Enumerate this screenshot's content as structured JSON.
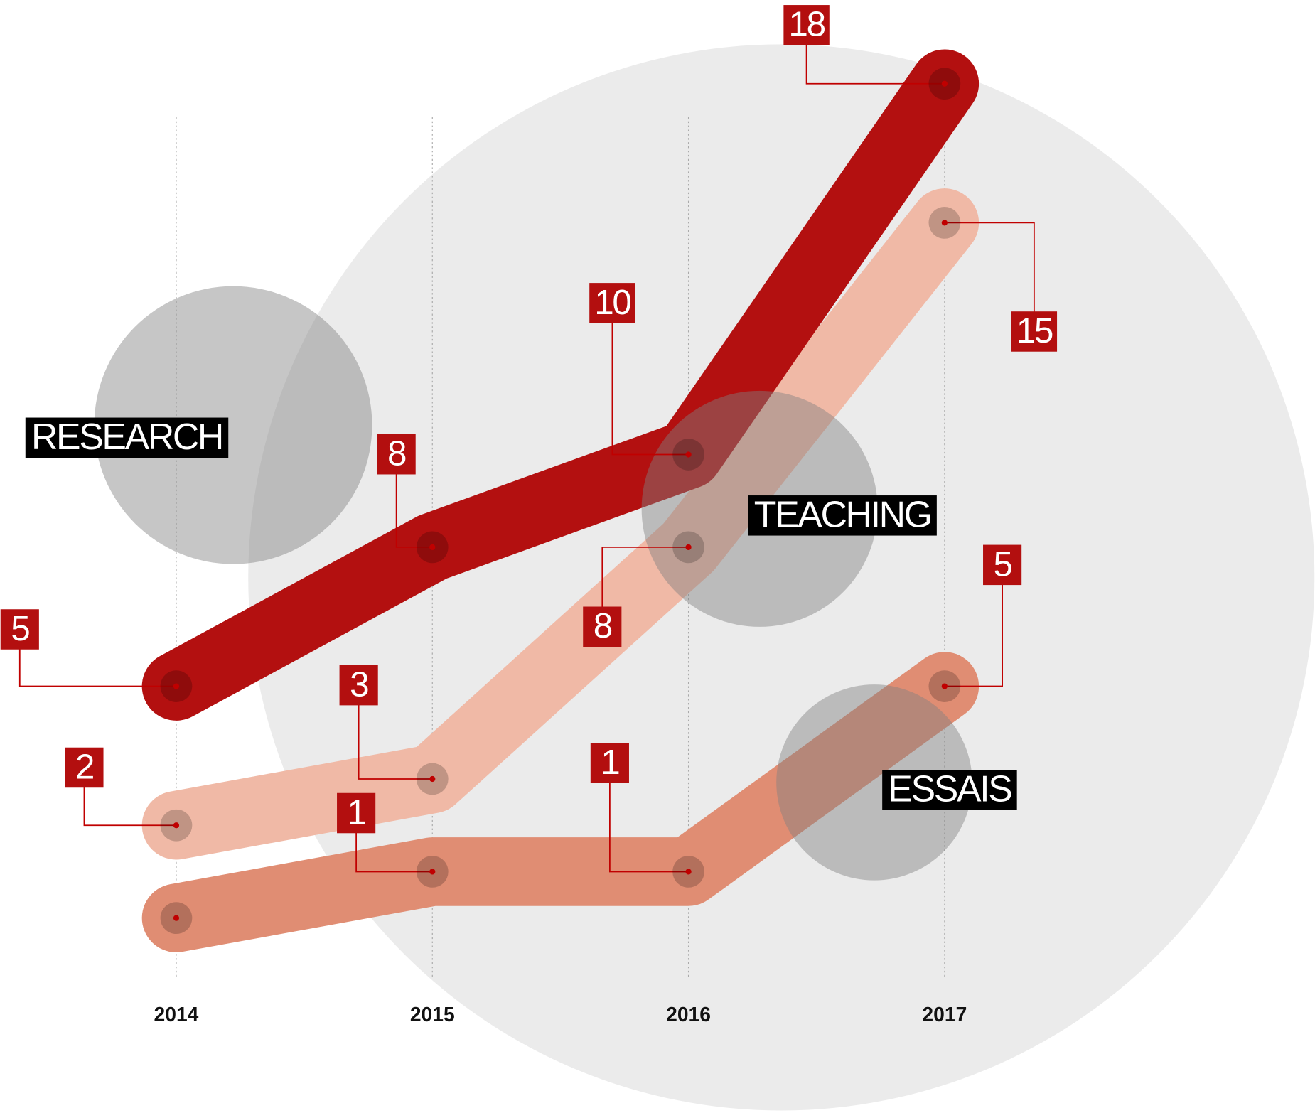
{
  "chart_data": {
    "type": "line",
    "categories": [
      "2014",
      "2015",
      "2016",
      "2017"
    ],
    "ylim": [
      0,
      18
    ],
    "series": [
      {
        "name": "RESEARCH",
        "color": "#b31010",
        "values": [
          5,
          8,
          10,
          18
        ]
      },
      {
        "name": "TEACHING",
        "color": "#f0b9a6",
        "values": [
          2,
          3,
          8,
          15
        ]
      },
      {
        "name": "ESSAIS",
        "color": "#e08d73",
        "values": [
          0,
          1,
          1,
          5
        ],
        "value_labels": [
          null,
          "1",
          "1",
          "5"
        ]
      }
    ]
  }
}
